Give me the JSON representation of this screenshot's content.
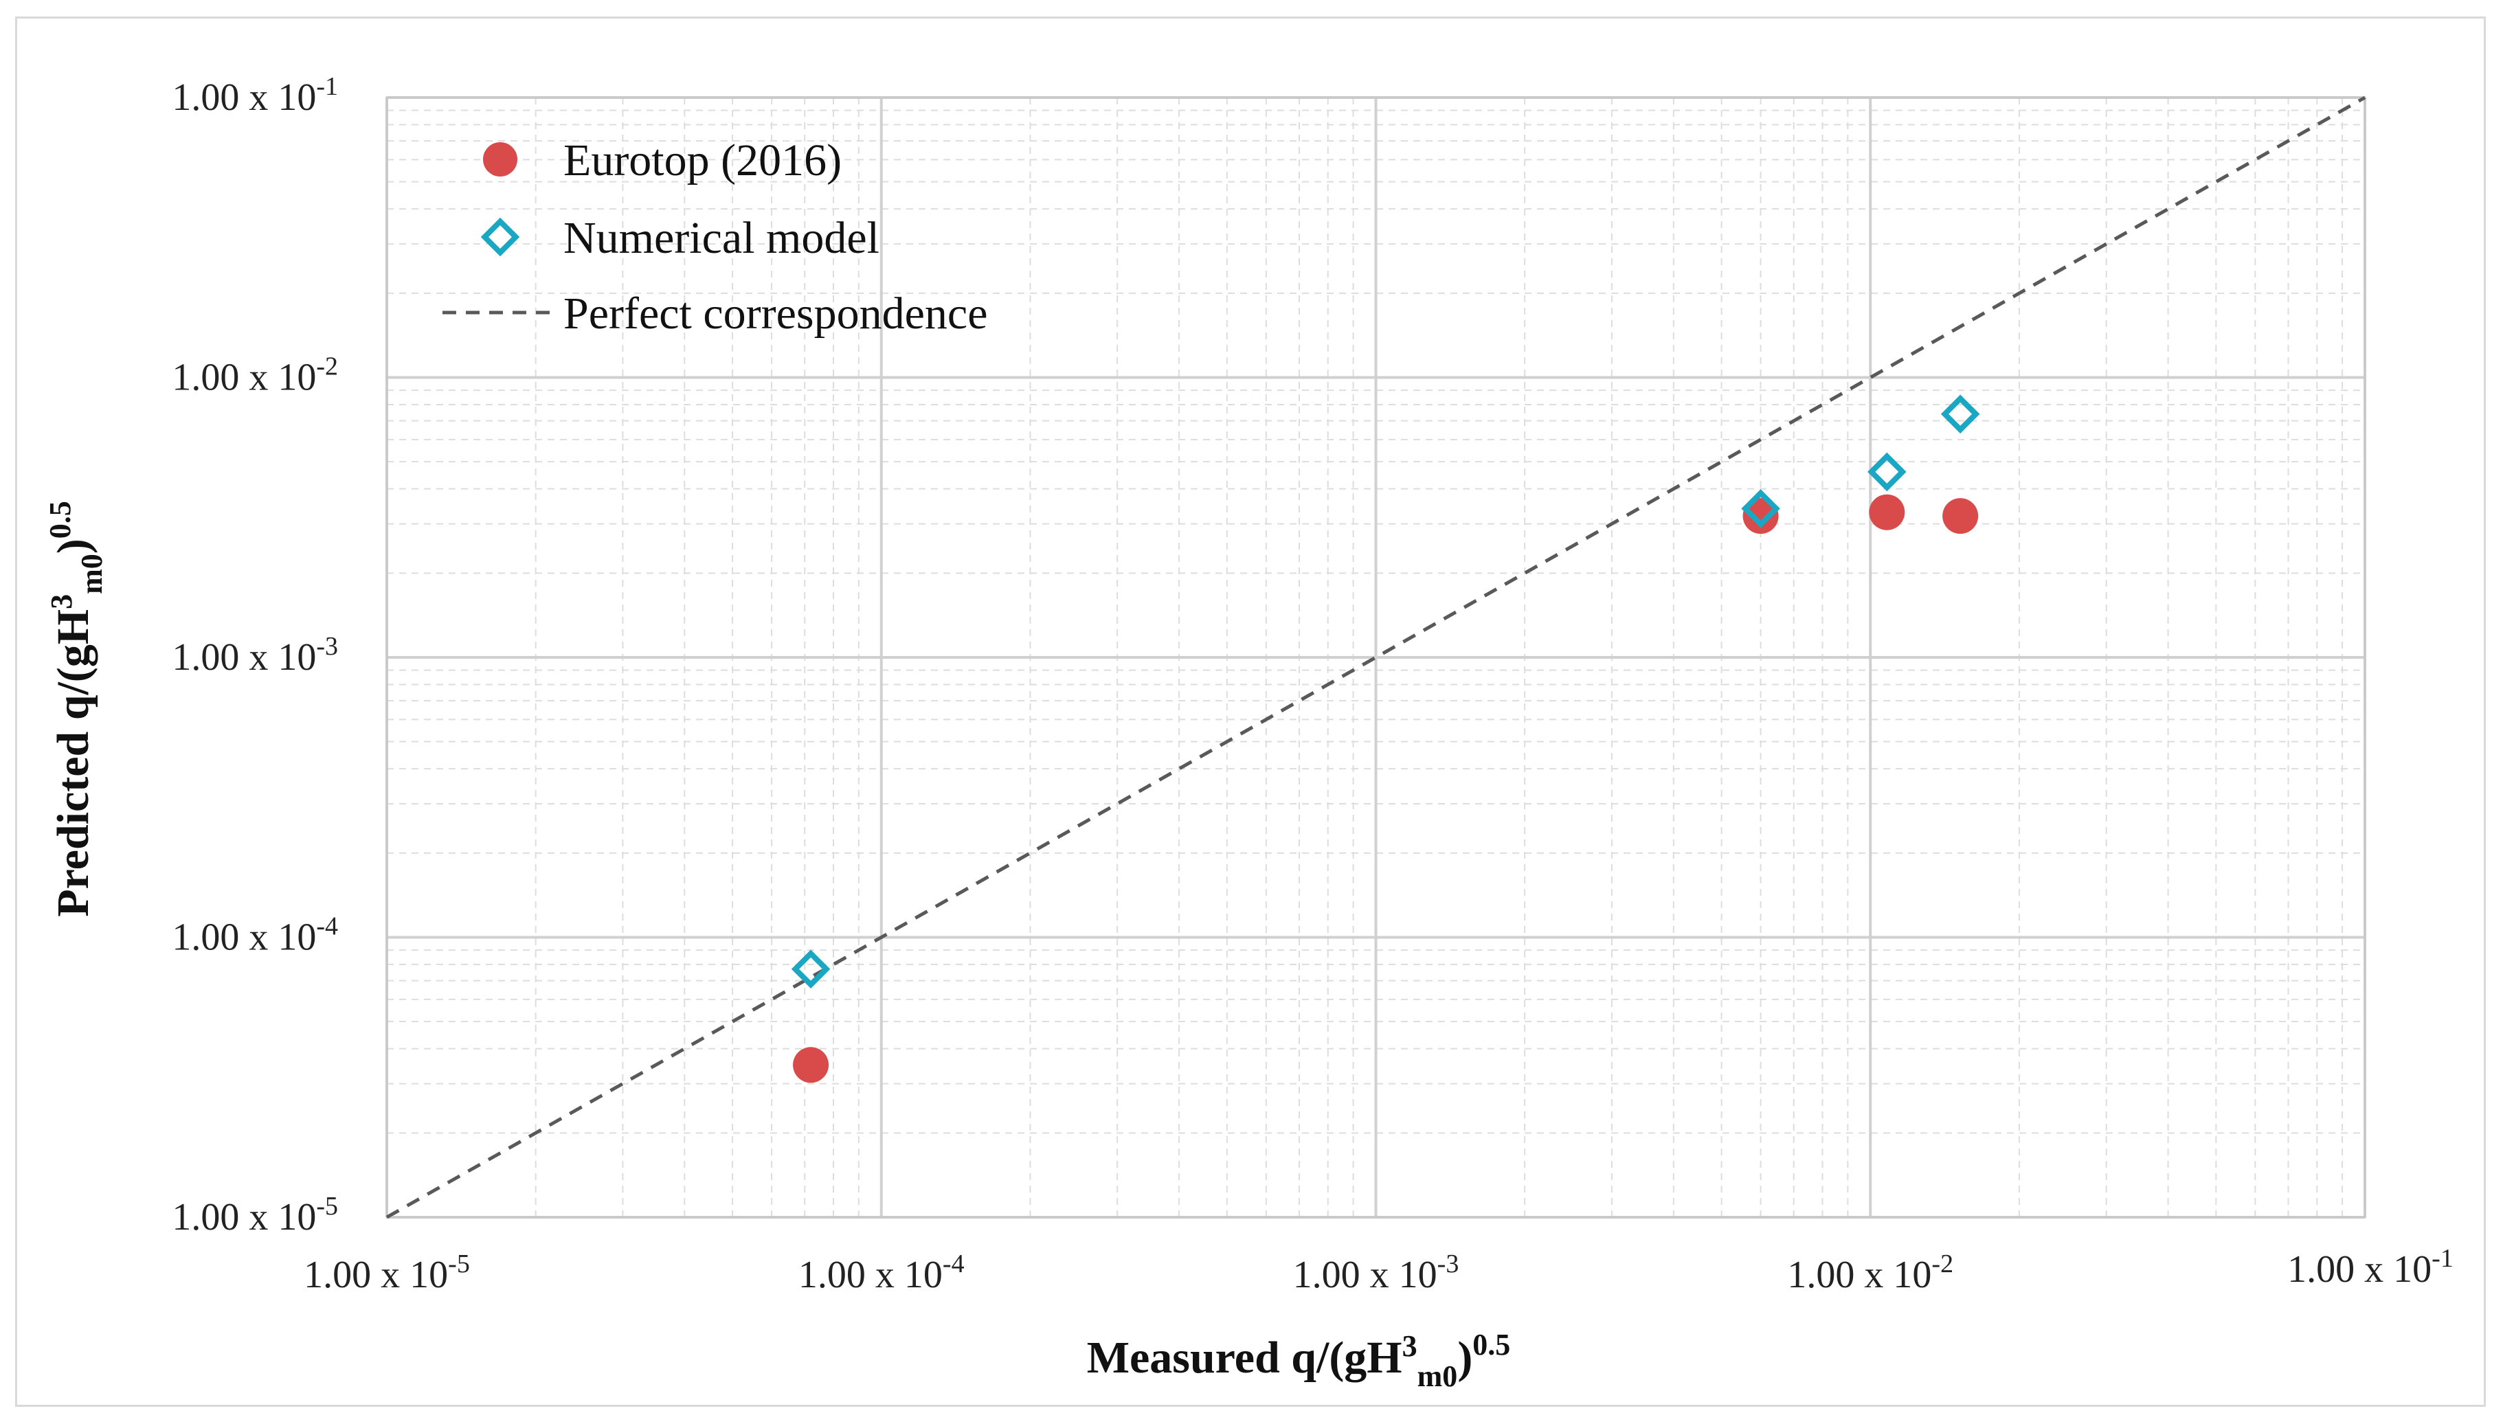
{
  "colors": {
    "eurotop": "#d94a4a",
    "numerical": "#1aa7c4",
    "perfect_line": "#595959",
    "grid_major": "#d0d0d0",
    "grid_minor": "#dddddd"
  },
  "chart_data": {
    "type": "scatter",
    "xscale": "log",
    "yscale": "log",
    "xlim": [
      1e-05,
      0.1
    ],
    "ylim": [
      1e-05,
      0.1
    ],
    "grid": true,
    "legend_position": "top-left",
    "xlabel": {
      "main": "Measured q/(gH",
      "sup": "3",
      "sub": "m0",
      "close": ")",
      "exp": "0.5"
    },
    "ylabel": {
      "main": "Predicted q/(gH",
      "sup": "3",
      "sub": "m0",
      "close": ")",
      "exp": "0.5"
    },
    "x_ticks": [
      {
        "value": 1e-05,
        "base": "1.00 x 10",
        "exp": "-5"
      },
      {
        "value": 0.0001,
        "base": "1.00 x 10",
        "exp": "-4"
      },
      {
        "value": 0.001,
        "base": "1.00 x 10",
        "exp": "-3"
      },
      {
        "value": 0.01,
        "base": "1.00 x 10",
        "exp": "-2"
      },
      {
        "value": 0.1,
        "base": "1.00 x 10",
        "exp": "-1"
      }
    ],
    "y_ticks": [
      {
        "value": 0.1,
        "base": "1.00 x 10",
        "exp": "-1"
      },
      {
        "value": 0.01,
        "base": "1.00 x 10",
        "exp": "-2"
      },
      {
        "value": 0.001,
        "base": "1.00 x 10",
        "exp": "-3"
      },
      {
        "value": 0.0001,
        "base": "1.00 x 10",
        "exp": "-4"
      },
      {
        "value": 1e-05,
        "base": "1.00 x 10",
        "exp": "-5"
      }
    ],
    "series": [
      {
        "name": "Eurotop (2016)",
        "marker": "circle",
        "points": [
          {
            "x": 7.2e-05,
            "y": 3.5e-05
          },
          {
            "x": 0.006,
            "y": 0.0032
          },
          {
            "x": 0.0108,
            "y": 0.0033
          },
          {
            "x": 0.0152,
            "y": 0.0032
          }
        ]
      },
      {
        "name": "Numerical model",
        "marker": "diamond",
        "points": [
          {
            "x": 7.2e-05,
            "y": 7.7e-05
          },
          {
            "x": 0.006,
            "y": 0.0034
          },
          {
            "x": 0.0108,
            "y": 0.0046
          },
          {
            "x": 0.0152,
            "y": 0.0074
          }
        ]
      },
      {
        "name": "Perfect correspondence",
        "marker": "dashed-line",
        "points": [
          {
            "x": 1e-05,
            "y": 1e-05
          },
          {
            "x": 0.1,
            "y": 0.1
          }
        ]
      }
    ]
  }
}
